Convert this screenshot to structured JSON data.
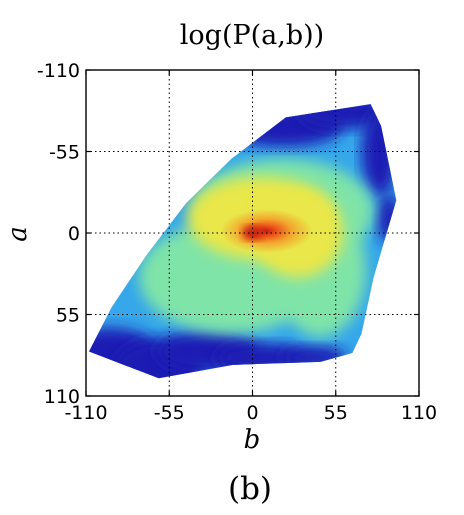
{
  "chart_data": {
    "type": "heatmap",
    "title": "log(P(a,b))",
    "xlabel": "b",
    "ylabel": "a",
    "caption": "(b)",
    "xlim": [
      -110,
      110
    ],
    "ylim": [
      110,
      -110
    ],
    "y_inverted": true,
    "x_ticks": [
      "-110",
      "-55",
      "0",
      "55",
      "110"
    ],
    "y_ticks": [
      "-110",
      "-55",
      "0",
      "55",
      "110"
    ],
    "x_tick_values": [
      -110,
      -55,
      0,
      55,
      110
    ],
    "y_tick_values": [
      -110,
      -55,
      0,
      55,
      110
    ],
    "grid": true,
    "colormap": "jet",
    "peak": {
      "b": 0,
      "a": 0
    },
    "support_polygon": [
      {
        "b": -14,
        "a": -50
      },
      {
        "b": 22,
        "a": -78
      },
      {
        "b": 78,
        "a": -87
      },
      {
        "b": 85,
        "a": -72
      },
      {
        "b": 95,
        "a": -22
      },
      {
        "b": 80,
        "a": 30
      },
      {
        "b": 72,
        "a": 68
      },
      {
        "b": 66,
        "a": 81
      },
      {
        "b": 45,
        "a": 87
      },
      {
        "b": -13,
        "a": 89
      },
      {
        "b": -62,
        "a": 98
      },
      {
        "b": -108,
        "a": 80
      },
      {
        "b": -93,
        "a": 50
      },
      {
        "b": -70,
        "a": 15
      },
      {
        "b": -44,
        "a": -20
      }
    ],
    "colors": {
      "low": "#1a1fb4",
      "mid_low": "#35a7ea",
      "mid": "#7fe4a8",
      "mid_high": "#e9e74a",
      "high": "#f07d23",
      "peak": "#c81e10"
    }
  }
}
